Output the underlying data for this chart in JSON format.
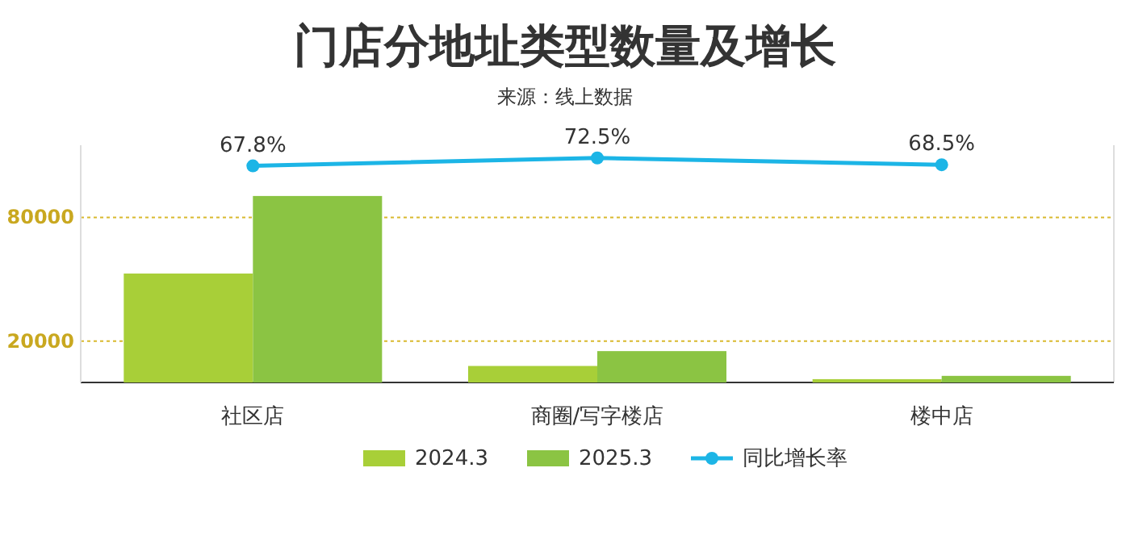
{
  "chart_data": {
    "type": "bar",
    "title": "门店分地址类型数量及增长",
    "subtitle": "来源：线上数据",
    "categories": [
      "社区店",
      "商圈/写字楼店",
      "楼中店"
    ],
    "series": [
      {
        "name": "2024.3",
        "color": "#a8cf38",
        "values": [
          52800,
          8000,
          1600
        ]
      },
      {
        "name": "2025.3",
        "color": "#8bc443",
        "values": [
          90400,
          15200,
          3200
        ]
      },
      {
        "name": "同比增长率",
        "type": "line",
        "axis": "y2",
        "color": "#1cb5e6",
        "values": [
          67.8,
          72.5,
          68.5
        ],
        "value_labels": [
          "67.8%",
          "72.5%",
          "68.5%"
        ]
      }
    ],
    "ylim": [
      0,
      115000
    ],
    "y2lim": [
      -60,
      80
    ],
    "yticks": [
      20000,
      80000
    ],
    "grid": "y",
    "legend": "bottom",
    "marker": "circle",
    "tick_labels": "xy"
  }
}
